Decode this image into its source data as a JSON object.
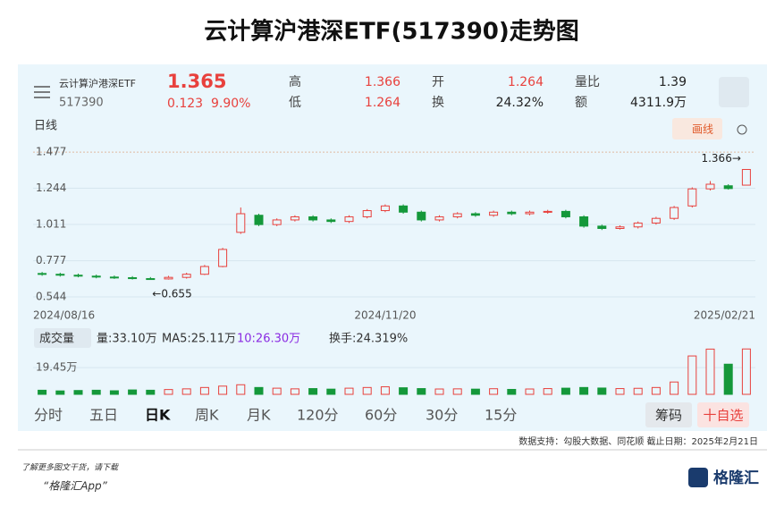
{
  "title": "云计算沪港深ETF(517390)走势图",
  "quote": {
    "name": "云计算沪港深ETF",
    "code": "517390",
    "price": "1.365",
    "change": "0.123",
    "change_pct": "9.90%",
    "fields": [
      {
        "label": "高",
        "value": "1.366"
      },
      {
        "label": "低",
        "value": "1.264"
      },
      {
        "label": "开",
        "value": "1.264"
      },
      {
        "label": "换",
        "value": "24.32%"
      },
      {
        "label": "量比",
        "value": "1.39"
      },
      {
        "label": "额",
        "value": "4311.9万"
      }
    ]
  },
  "period": "日线",
  "draw_button": "画线",
  "volume_info": {
    "selector": "成交量",
    "items": [
      "量:33.10万",
      "MA5:25.11万",
      "10:26.30万",
      "换手:24.319%"
    ]
  },
  "tabs": [
    "分时",
    "五日",
    "日K",
    "周K",
    "月K",
    "120分",
    "60分",
    "30分",
    "15分"
  ],
  "buttons": [
    "筹码",
    "十自选"
  ],
  "footer": "数据支持：勾股大数据、同花顺  截止日期：2025年2月21日",
  "promo": "了解更多图文干货，请下载",
  "app": "“格隆汇App”",
  "brand": "格隆汇",
  "chart_data": {
    "type": "candlestick",
    "up_color": "#e8413d",
    "down_color": "#14983a",
    "categories": [
      "2024/08/16",
      null,
      null,
      null,
      null,
      null,
      null,
      null,
      null,
      null,
      null,
      null,
      null,
      null,
      null,
      null,
      null,
      null,
      null,
      "2024/11/20",
      null,
      null,
      null,
      null,
      null,
      null,
      null,
      null,
      null,
      null,
      null,
      null,
      null,
      null,
      null,
      null,
      null,
      null,
      null,
      "2025/02/21"
    ],
    "open": [
      0.695,
      0.69,
      0.684,
      0.678,
      0.672,
      0.668,
      0.662,
      0.66,
      0.67,
      0.69,
      0.74,
      0.96,
      1.07,
      1.01,
      1.04,
      1.06,
      1.04,
      1.03,
      1.06,
      1.1,
      1.13,
      1.09,
      1.04,
      1.06,
      1.08,
      1.07,
      1.09,
      1.08,
      1.09,
      1.095,
      1.06,
      1.0,
      0.985,
      0.995,
      1.02,
      1.05,
      1.13,
      1.24,
      1.26,
      1.264
    ],
    "high": [
      0.705,
      0.7,
      0.694,
      0.688,
      0.682,
      0.678,
      0.672,
      0.68,
      0.7,
      0.75,
      0.86,
      1.12,
      1.08,
      1.05,
      1.07,
      1.07,
      1.05,
      1.07,
      1.11,
      1.14,
      1.14,
      1.1,
      1.07,
      1.09,
      1.09,
      1.1,
      1.1,
      1.1,
      1.105,
      1.105,
      1.07,
      1.01,
      1.005,
      1.03,
      1.06,
      1.13,
      1.25,
      1.29,
      1.27,
      1.366
    ],
    "low": [
      0.68,
      0.675,
      0.67,
      0.664,
      0.66,
      0.656,
      0.655,
      0.656,
      0.662,
      0.685,
      0.735,
      0.95,
      1.0,
      1.0,
      1.03,
      1.03,
      1.02,
      1.02,
      1.05,
      1.09,
      1.08,
      1.03,
      1.03,
      1.05,
      1.06,
      1.06,
      1.07,
      1.07,
      1.08,
      1.05,
      0.99,
      0.975,
      0.978,
      0.985,
      1.01,
      1.04,
      1.12,
      1.23,
      1.235,
      1.264
    ],
    "close": [
      0.69,
      0.684,
      0.678,
      0.672,
      0.668,
      0.662,
      0.66,
      0.67,
      0.69,
      0.74,
      0.85,
      1.08,
      1.01,
      1.04,
      1.06,
      1.04,
      1.03,
      1.06,
      1.1,
      1.13,
      1.09,
      1.04,
      1.06,
      1.08,
      1.07,
      1.09,
      1.08,
      1.09,
      1.095,
      1.06,
      1.0,
      0.985,
      0.995,
      1.02,
      1.05,
      1.12,
      1.24,
      1.27,
      1.242,
      1.365
    ],
    "ylim": [
      0.481,
      1.535
    ],
    "yticks": [
      1.477,
      1.244,
      1.011,
      0.777,
      0.544
    ],
    "annotations": [
      "1.366→",
      "←0.655"
    ],
    "volume": {
      "values": [
        3,
        2.5,
        2.8,
        3,
        2.6,
        3.2,
        3,
        3.5,
        4,
        5,
        6,
        7,
        5,
        4.5,
        4,
        4.2,
        3.8,
        4.5,
        5,
        5.5,
        4.8,
        4.2,
        3.9,
        4,
        3.8,
        4.1,
        3.6,
        3.9,
        4.2,
        4.5,
        5,
        4.6,
        4.2,
        4.4,
        5,
        9,
        28,
        33,
        22,
        33.1
      ],
      "ylim": [
        0,
        45
      ],
      "yticks": [
        {
          "value": 19.45,
          "label": "19.45万"
        }
      ]
    }
  }
}
